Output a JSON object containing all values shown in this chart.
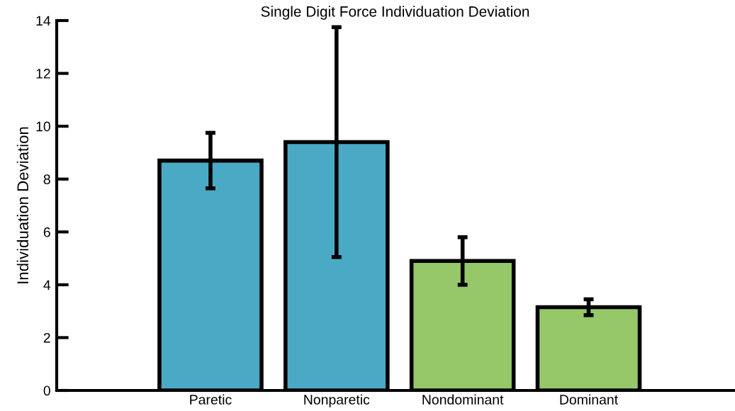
{
  "chart_data": {
    "type": "bar",
    "title": "Single Digit Force Individuation Deviation",
    "ylabel": "Individuation Deviation",
    "categories": [
      "Paretic",
      "Nonparetic",
      "Nondominant",
      "Dominant"
    ],
    "values": [
      8.7,
      9.4,
      4.9,
      3.15
    ],
    "errors": [
      1.05,
      4.35,
      0.9,
      0.3
    ],
    "colors": [
      "#4aa9c5",
      "#4aa9c5",
      "#96c86a",
      "#96c86a"
    ],
    "ylim": [
      0,
      14
    ],
    "yticks": [
      0,
      2,
      4,
      6,
      8,
      10,
      12,
      14
    ],
    "grid": false,
    "legend": false
  }
}
